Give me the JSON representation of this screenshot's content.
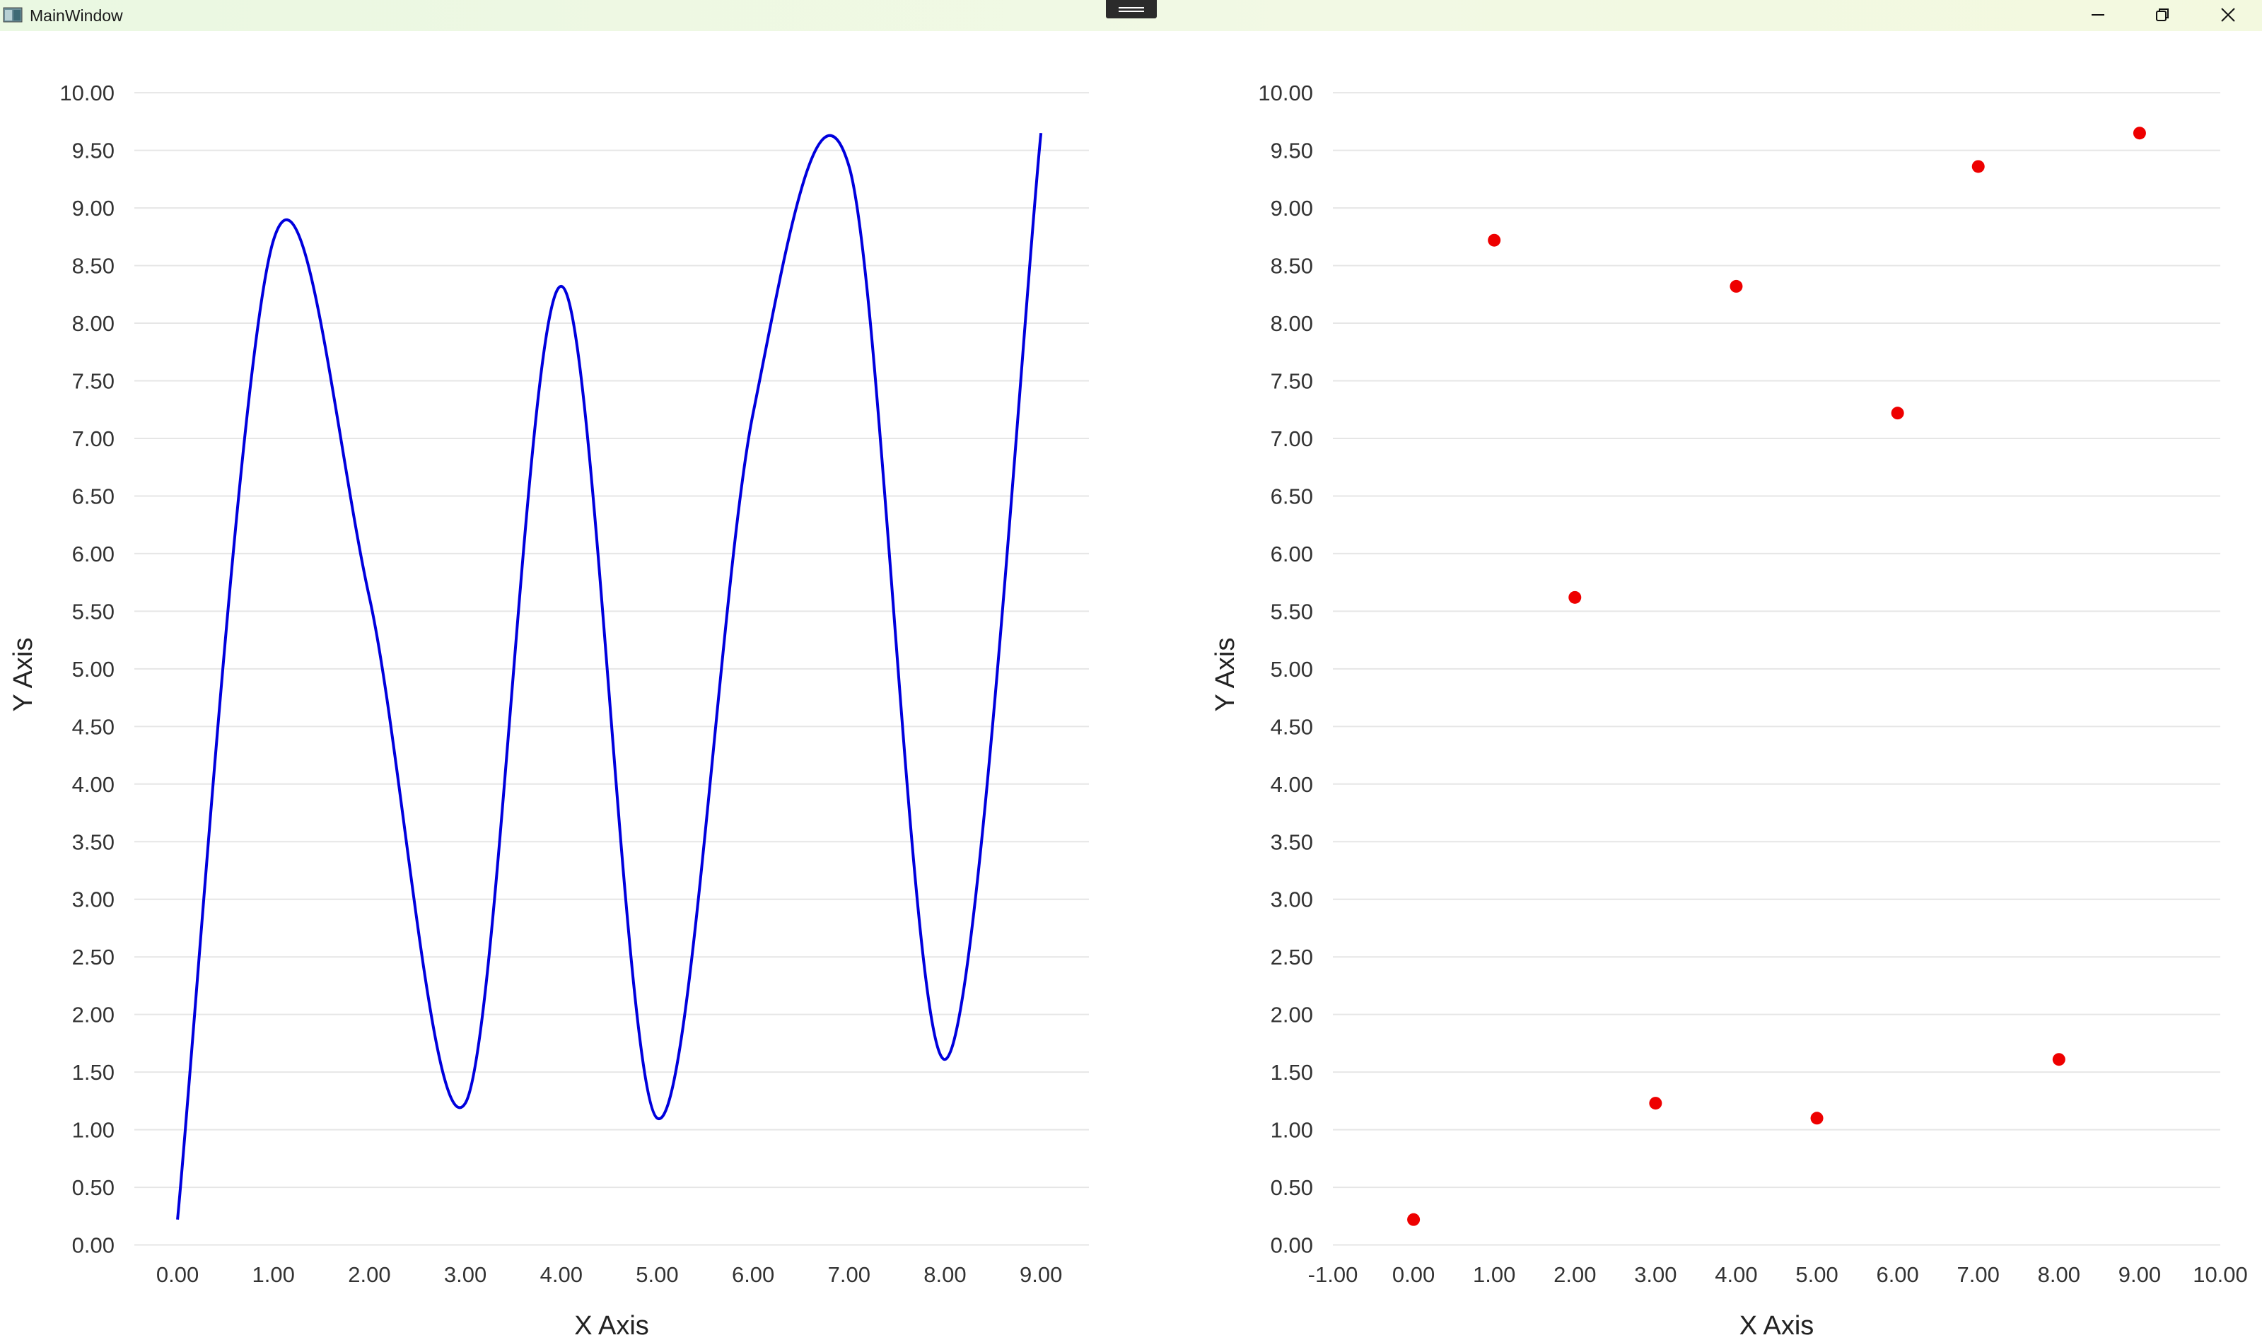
{
  "window": {
    "title": "MainWindow",
    "icons": {
      "app": "window-app-icon",
      "minimize": "minimize-icon",
      "restore": "restore-icon",
      "close": "close-icon"
    }
  },
  "chart_data": [
    {
      "type": "line",
      "xlabel": "X Axis",
      "ylabel": "Y Axis",
      "x": [
        0,
        1,
        2,
        3,
        4,
        5,
        6,
        7,
        8,
        9
      ],
      "y": [
        0.22,
        8.72,
        5.62,
        1.23,
        8.32,
        1.1,
        7.22,
        9.36,
        1.61,
        9.65
      ],
      "xlim": [
        -0.45,
        9.5
      ],
      "ylim": [
        -0.5,
        10.4
      ],
      "xticks": [
        "0.00",
        "1.00",
        "2.00",
        "3.00",
        "4.00",
        "5.00",
        "6.00",
        "7.00",
        "8.00",
        "9.00"
      ],
      "yticks": [
        "0.00",
        "0.50",
        "1.00",
        "1.50",
        "2.00",
        "2.50",
        "3.00",
        "3.50",
        "4.00",
        "4.50",
        "5.00",
        "5.50",
        "6.00",
        "6.50",
        "7.00",
        "7.50",
        "8.00",
        "8.50",
        "9.00",
        "9.50",
        "10.00"
      ],
      "grid": true,
      "color": "#0000dd"
    },
    {
      "type": "scatter",
      "xlabel": "X Axis",
      "ylabel": "Y Axis",
      "x": [
        0,
        1,
        2,
        3,
        4,
        5,
        6,
        7,
        8,
        9
      ],
      "y": [
        0.22,
        8.72,
        5.62,
        1.23,
        8.32,
        1.1,
        7.22,
        9.36,
        1.61,
        9.65
      ],
      "xlim": [
        -1,
        10
      ],
      "ylim": [
        -0.5,
        10.4
      ],
      "xticks": [
        "-1.00",
        "0.00",
        "1.00",
        "2.00",
        "3.00",
        "4.00",
        "5.00",
        "6.00",
        "7.00",
        "8.00",
        "9.00",
        "10.00"
      ],
      "yticks": [
        "0.00",
        "0.50",
        "1.00",
        "1.50",
        "2.00",
        "2.50",
        "3.00",
        "3.50",
        "4.00",
        "4.50",
        "5.00",
        "5.50",
        "6.00",
        "6.50",
        "7.00",
        "7.50",
        "8.00",
        "8.50",
        "9.00",
        "9.50",
        "10.00"
      ],
      "grid": true,
      "color": "#ee0000"
    }
  ]
}
